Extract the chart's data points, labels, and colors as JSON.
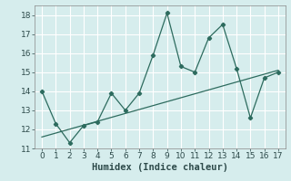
{
  "x": [
    0,
    1,
    2,
    3,
    4,
    5,
    6,
    7,
    8,
    9,
    10,
    11,
    12,
    13,
    14,
    15,
    16,
    17
  ],
  "y_line": [
    14,
    12.3,
    11.3,
    12.2,
    12.4,
    13.9,
    13.0,
    13.9,
    15.9,
    18.1,
    15.3,
    15.0,
    16.8,
    17.5,
    15.2,
    12.6,
    14.7,
    15.0
  ],
  "trend_x": [
    0,
    17
  ],
  "trend_y": [
    11.6,
    15.1
  ],
  "line_color": "#2d6b5e",
  "trend_color": "#2d6b5e",
  "bg_color": "#d6eded",
  "grid_color": "#ffffff",
  "xlabel": "Humidex (Indice chaleur)",
  "ylim": [
    11,
    18.5
  ],
  "xlim": [
    -0.5,
    17.5
  ],
  "yticks": [
    11,
    12,
    13,
    14,
    15,
    16,
    17,
    18
  ],
  "xticks": [
    0,
    1,
    2,
    3,
    4,
    5,
    6,
    7,
    8,
    9,
    10,
    11,
    12,
    13,
    14,
    15,
    16,
    17
  ],
  "xlabel_fontsize": 7.5,
  "tick_fontsize": 6.5
}
